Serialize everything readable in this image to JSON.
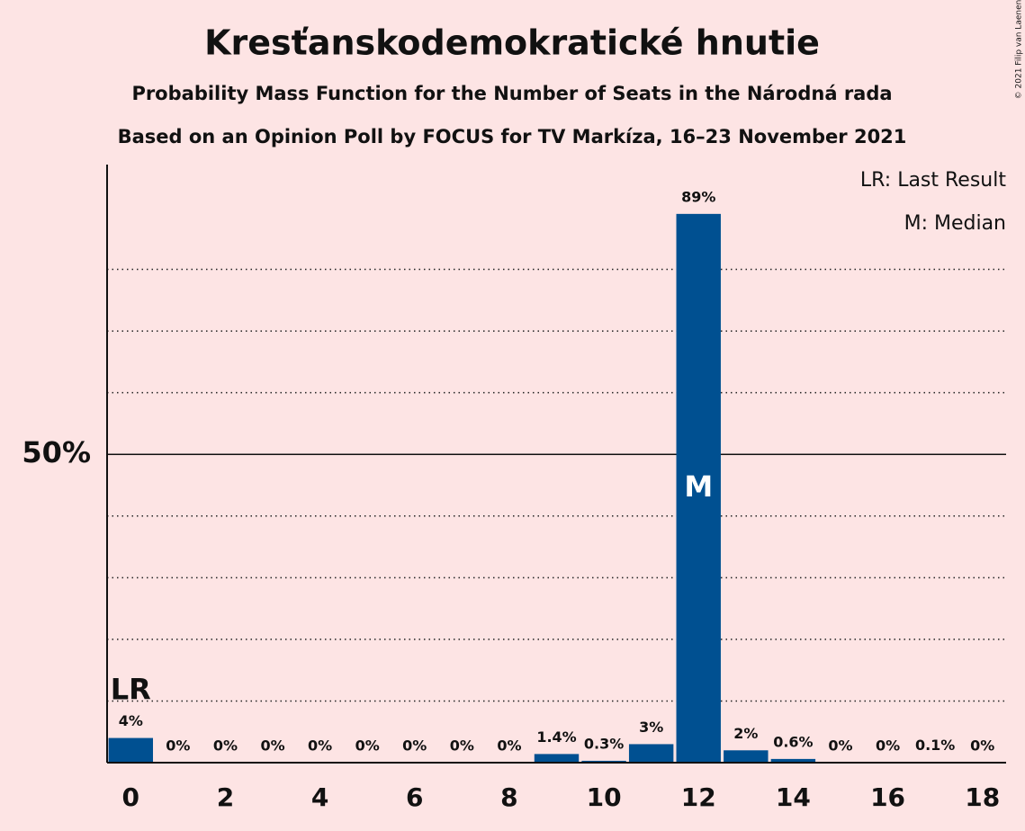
{
  "chart_data": {
    "type": "bar",
    "title": "Kresťanskodemokratické hnutie",
    "subtitles": [
      "Probability Mass Function for the Number of Seats in the Národná rada",
      "Based on an Opinion Poll by FOCUS for TV Markíza, 16–23 November 2021"
    ],
    "x": [
      0,
      1,
      2,
      3,
      4,
      5,
      6,
      7,
      8,
      9,
      10,
      11,
      12,
      13,
      14,
      15,
      16,
      17,
      18
    ],
    "values": [
      4,
      0,
      0,
      0,
      0,
      0,
      0,
      0,
      0,
      1.4,
      0.3,
      3,
      89,
      2,
      0.6,
      0,
      0,
      0.1,
      0
    ],
    "value_labels": [
      "4%",
      "0%",
      "0%",
      "0%",
      "0%",
      "0%",
      "0%",
      "0%",
      "0%",
      "1.4%",
      "0.3%",
      "3%",
      "89%",
      "2%",
      "0.6%",
      "0%",
      "0%",
      "0.1%",
      "0%"
    ],
    "color": "#005091",
    "xlim": [
      -0.5,
      18.5
    ],
    "xticks": [
      0,
      2,
      4,
      6,
      8,
      10,
      12,
      14,
      16,
      18
    ],
    "ylim": [
      0,
      97
    ],
    "yticks": [
      {
        "value": 50,
        "label": "50%"
      }
    ],
    "minor_gridlines": [
      10,
      20,
      30,
      40,
      60,
      70,
      80
    ],
    "annotations": [
      {
        "text": "LR",
        "x": 0
      },
      {
        "text": "M",
        "x": 12
      }
    ],
    "legend": [
      "LR: Last Result",
      "M: Median"
    ],
    "credit": "© 2021 Filip van Laenen"
  }
}
